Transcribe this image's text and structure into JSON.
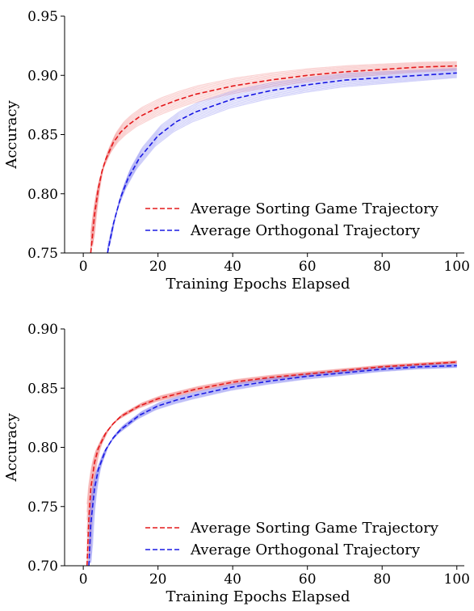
{
  "chart_data": [
    {
      "type": "line",
      "xlabel": "Training Epochs Elapsed",
      "ylabel": "Accuracy",
      "xlim": [
        -5,
        102
      ],
      "ylim": [
        0.75,
        0.95
      ],
      "xticks": [
        0,
        20,
        40,
        60,
        80,
        100
      ],
      "yticks": [
        0.75,
        0.8,
        0.85,
        0.9,
        0.95
      ],
      "xtick_labels": [
        "0",
        "20",
        "40",
        "60",
        "80",
        "100"
      ],
      "ytick_labels": [
        "0.75",
        "0.80",
        "0.85",
        "0.90",
        "0.95"
      ],
      "grid": false,
      "legend_position": "lower-right",
      "series": [
        {
          "name": "Average Sorting Game Trajectory",
          "color": "#e41a1c",
          "style": "dashed",
          "x": [
            2,
            3,
            4,
            5,
            6,
            8,
            10,
            12,
            15,
            20,
            25,
            30,
            40,
            50,
            60,
            70,
            80,
            90,
            100
          ],
          "y": [
            0.75,
            0.782,
            0.804,
            0.819,
            0.829,
            0.843,
            0.852,
            0.858,
            0.865,
            0.873,
            0.879,
            0.884,
            0.891,
            0.896,
            0.9,
            0.903,
            0.905,
            0.907,
            0.908
          ]
        },
        {
          "name": "Average Orthogonal Trajectory",
          "color": "#1a1ae4",
          "style": "dashed",
          "x": [
            6.5,
            8,
            10,
            12,
            15,
            20,
            25,
            30,
            40,
            50,
            60,
            70,
            80,
            90,
            100
          ],
          "y": [
            0.75,
            0.774,
            0.797,
            0.813,
            0.83,
            0.849,
            0.861,
            0.869,
            0.88,
            0.887,
            0.892,
            0.896,
            0.898,
            0.9,
            0.902
          ]
        }
      ],
      "band_series": [
        {
          "color": "#f08080",
          "spread": 0.009,
          "count": 12
        },
        {
          "color": "#8080f0",
          "spread": 0.01,
          "count": 12
        }
      ]
    },
    {
      "type": "line",
      "xlabel": "Training Epochs Elapsed",
      "ylabel": "Accuracy",
      "xlim": [
        -5,
        102
      ],
      "ylim": [
        0.7,
        0.9
      ],
      "xticks": [
        0,
        20,
        40,
        60,
        80,
        100
      ],
      "yticks": [
        0.7,
        0.75,
        0.8,
        0.85,
        0.9
      ],
      "xtick_labels": [
        "0",
        "20",
        "40",
        "60",
        "80",
        "100"
      ],
      "ytick_labels": [
        "0.70",
        "0.75",
        "0.80",
        "0.85",
        "0.90"
      ],
      "grid": false,
      "legend_position": "lower-right",
      "series": [
        {
          "name": "Average Sorting Game Trajectory",
          "color": "#e41a1c",
          "style": "dashed",
          "x": [
            1,
            1.5,
            2,
            3,
            4,
            6,
            8,
            10,
            15,
            20,
            25,
            30,
            40,
            50,
            60,
            70,
            80,
            90,
            100
          ],
          "y": [
            0.7,
            0.74,
            0.765,
            0.787,
            0.799,
            0.812,
            0.82,
            0.826,
            0.835,
            0.841,
            0.845,
            0.849,
            0.855,
            0.859,
            0.862,
            0.865,
            0.868,
            0.87,
            0.872
          ]
        },
        {
          "name": "Average Orthogonal Trajectory",
          "color": "#1a1ae4",
          "style": "dashed",
          "x": [
            1.5,
            2,
            3,
            4,
            6,
            8,
            10,
            15,
            20,
            25,
            30,
            40,
            50,
            60,
            70,
            80,
            90,
            100
          ],
          "y": [
            0.7,
            0.735,
            0.765,
            0.781,
            0.798,
            0.808,
            0.815,
            0.827,
            0.835,
            0.84,
            0.844,
            0.851,
            0.856,
            0.86,
            0.863,
            0.866,
            0.868,
            0.869
          ]
        }
      ],
      "band_series": [
        {
          "color": "#f08080",
          "spread": 0.003,
          "count": 12
        },
        {
          "color": "#8080f0",
          "spread": 0.004,
          "count": 12
        }
      ]
    }
  ]
}
